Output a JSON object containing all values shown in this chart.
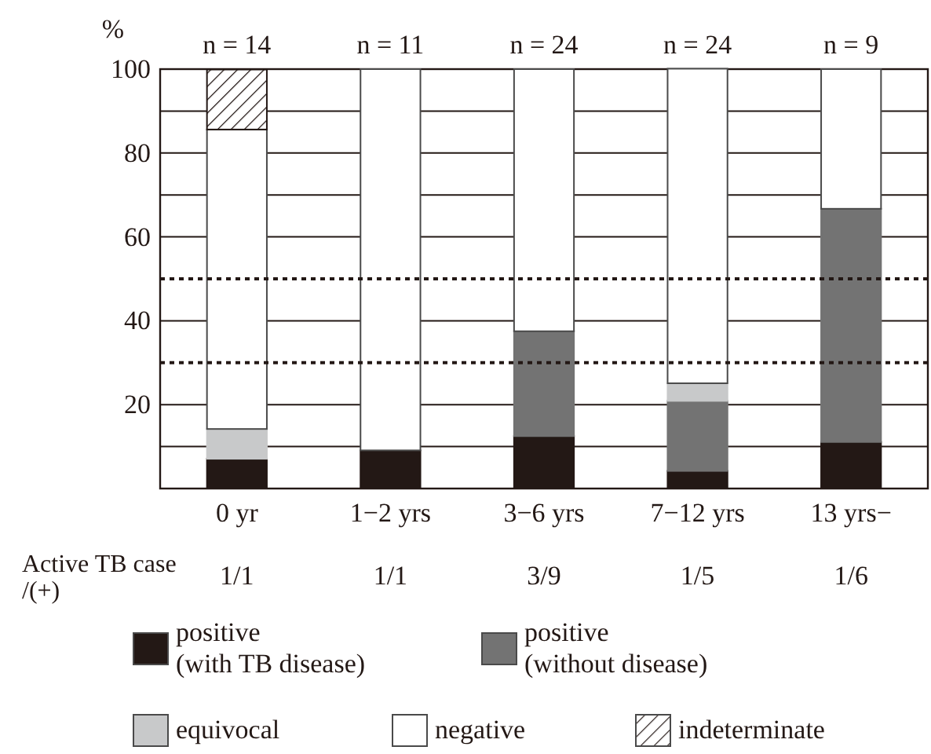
{
  "chart_data": {
    "type": "bar",
    "stacked": true,
    "ylabel": "%",
    "categories": [
      "0 yr",
      "1−2 yrs",
      "3−6 yrs",
      "7−12 yrs",
      "13 yrs−"
    ],
    "series": [
      {
        "name": "positive\n(with TB disease)",
        "color": "#231815",
        "values": [
          7.1,
          9.1,
          12.5,
          4.2,
          11.1
        ]
      },
      {
        "name": "positive\n(without disease)",
        "color": "#737373",
        "values": [
          0,
          0,
          25.0,
          16.7,
          55.6
        ]
      },
      {
        "name": "equivocal",
        "color": "#c8c9ca",
        "values": [
          7.1,
          0,
          0,
          4.2,
          0
        ]
      },
      {
        "name": "negative",
        "color": "#ffffff",
        "values": [
          71.4,
          90.9,
          62.5,
          75.0,
          33.3
        ]
      },
      {
        "name": "indeterminate",
        "color": "#231815",
        "values": [
          14.3,
          0,
          0,
          0,
          0
        ]
      }
    ],
    "ylim": [
      0,
      100
    ],
    "yticks": [
      {
        "value": 10,
        "label": null
      },
      20,
      40,
      60,
      {
        "value": 70,
        "label": null
      },
      80,
      {
        "value": 90,
        "label": null
      },
      100
    ],
    "grid": "y",
    "legend": "bottom",
    "ref_lines": [
      {
        "axis": "y",
        "value": 50,
        "line_style": "dotted",
        "color": "#231815"
      },
      {
        "axis": "y",
        "value": 30,
        "line_style": "dotted",
        "color": "#231815"
      }
    ],
    "annotations": [
      {
        "text": "n = 14",
        "x": "0 yr",
        "y": 100
      },
      {
        "text": "n = 11",
        "x": "1−2 yrs",
        "y": 100
      },
      {
        "text": "n = 24",
        "x": "3−6 yrs",
        "y": 100
      },
      {
        "text": "n = 24",
        "x": "7−12 yrs",
        "y": 100
      },
      {
        "text": "n = 9",
        "x": "13 yrs−",
        "y": 100
      },
      "Active TB case\n/(+)",
      "1/1",
      "1/1",
      "3/9",
      "1/5",
      "1/6"
    ]
  }
}
